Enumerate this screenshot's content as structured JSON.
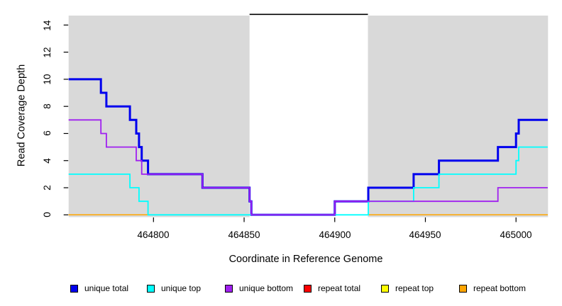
{
  "chart_data": {
    "type": "step-line",
    "title": "",
    "xlabel": "Coordinate in Reference Genome",
    "ylabel": "Read Coverage Depth",
    "xlim": [
      464753.2,
      465017.5
    ],
    "ylim": [
      0,
      15
    ],
    "x_ticks": [
      464800,
      464850,
      464900,
      464950,
      465000
    ],
    "y_ticks": [
      0,
      2,
      4,
      6,
      8,
      10,
      12,
      14
    ],
    "grid": false,
    "panel_color": "#d9d9d9",
    "highlight_region": {
      "x0": 464853,
      "x1": 464918.3,
      "color": "#ffffff",
      "top_marker_color": "#000000"
    },
    "legend_position": "bottom",
    "series": [
      {
        "name": "unique total",
        "color": "#0000ee",
        "width": 3,
        "steps": [
          [
            464753.2,
            10
          ],
          [
            464771,
            9
          ],
          [
            464774,
            8
          ],
          [
            464787,
            7
          ],
          [
            464790.5,
            6
          ],
          [
            464792,
            5
          ],
          [
            464793.5,
            4
          ],
          [
            464797,
            3
          ],
          [
            464827,
            2
          ],
          [
            464853,
            1
          ],
          [
            464854,
            0
          ],
          [
            464900,
            1
          ],
          [
            464918.5,
            2
          ],
          [
            464943.5,
            3
          ],
          [
            464957.5,
            4
          ],
          [
            464990,
            5
          ],
          [
            465000,
            6
          ],
          [
            465001.5,
            7
          ]
        ]
      },
      {
        "name": "unique top",
        "color": "#00ffff",
        "width": 1.8,
        "steps": [
          [
            464753.2,
            3
          ],
          [
            464787,
            2
          ],
          [
            464792,
            1
          ],
          [
            464797,
            0
          ],
          [
            464918.5,
            1
          ],
          [
            464943.5,
            2
          ],
          [
            464957.5,
            3
          ],
          [
            465000,
            4
          ],
          [
            465001.5,
            5
          ]
        ]
      },
      {
        "name": "unique bottom",
        "color": "#a020f0",
        "width": 1.8,
        "steps": [
          [
            464753.2,
            7
          ],
          [
            464771,
            6
          ],
          [
            464774,
            5
          ],
          [
            464790.5,
            4
          ],
          [
            464793.5,
            3
          ],
          [
            464827,
            2
          ],
          [
            464853,
            1
          ],
          [
            464854,
            0
          ],
          [
            464900,
            1
          ],
          [
            464990,
            2
          ]
        ]
      },
      {
        "name": "repeat total",
        "color": "#ff0000",
        "width": 1.5,
        "steps": [
          [
            464753.2,
            0
          ]
        ]
      },
      {
        "name": "repeat top",
        "color": "#ffff00",
        "width": 1.5,
        "steps": [
          [
            464753.2,
            0
          ]
        ]
      },
      {
        "name": "repeat bottom",
        "color": "#ffa500",
        "width": 1.5,
        "steps": [
          [
            464753.2,
            0
          ]
        ]
      }
    ],
    "draw_order": [
      3,
      4,
      5,
      0,
      1,
      2
    ]
  }
}
